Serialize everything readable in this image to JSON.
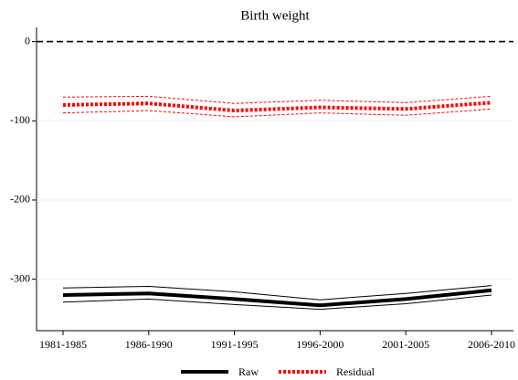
{
  "chart_data": {
    "type": "line",
    "title": "Birth weight",
    "categories": [
      "1981-1985",
      "1986-1990",
      "1991-1995",
      "1996-2000",
      "2001-2005",
      "2006-2010"
    ],
    "series": [
      {
        "name": "Raw",
        "color": "#000000",
        "style": "solid",
        "values": [
          -320,
          -318,
          -325,
          -333,
          -325,
          -314
        ],
        "upper": [
          -311,
          -309,
          -316,
          -326,
          -318,
          -308
        ],
        "lower": [
          -329,
          -325,
          -332,
          -338,
          -331,
          -320
        ]
      },
      {
        "name": "Residual",
        "color": "#ff0000",
        "style": "dotted",
        "values": [
          -80,
          -78,
          -87,
          -83,
          -85,
          -77
        ],
        "upper": [
          -70,
          -69,
          -78,
          -74,
          -77,
          -69
        ],
        "lower": [
          -90,
          -87,
          -95,
          -90,
          -93,
          -85
        ]
      }
    ],
    "ylim": [
      -365,
      18
    ],
    "yticks": [
      0,
      -100,
      -200,
      -300
    ],
    "refline": 0,
    "legend": "bottom"
  }
}
